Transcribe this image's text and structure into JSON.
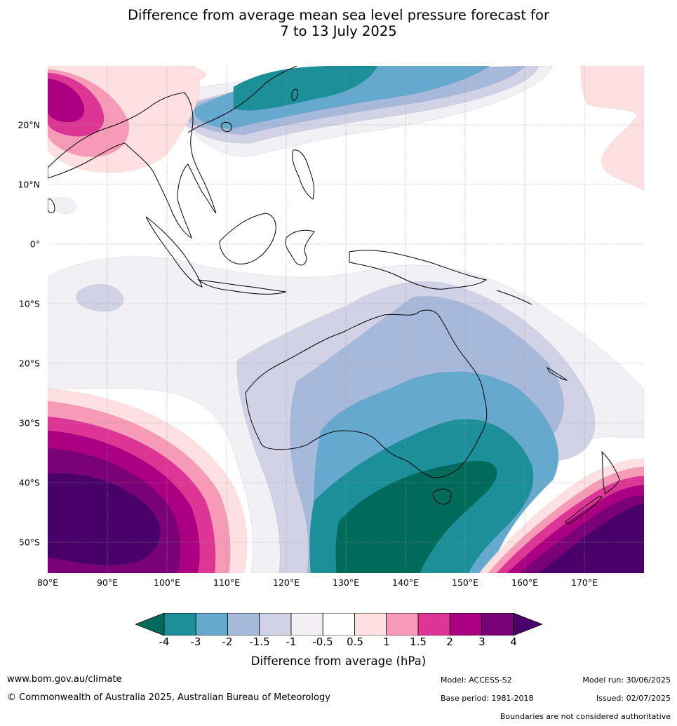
{
  "title_line1": "Difference from average mean sea level pressure forecast for",
  "title_line2": "7 to 13 July 2025",
  "map": {
    "lat_labels": [
      {
        "lat": 20,
        "text": "20°N"
      },
      {
        "lat": 10,
        "text": "10°N"
      },
      {
        "lat": 0,
        "text": "0°"
      },
      {
        "lat": -10,
        "text": "10°S"
      },
      {
        "lat": -20,
        "text": "20°S"
      },
      {
        "lat": -30,
        "text": "30°S"
      },
      {
        "lat": -40,
        "text": "40°S"
      },
      {
        "lat": -50,
        "text": "50°S"
      }
    ],
    "lon_labels": [
      {
        "lon": 80,
        "text": "80°E"
      },
      {
        "lon": 90,
        "text": "90°E"
      },
      {
        "lon": 100,
        "text": "100°E"
      },
      {
        "lon": 110,
        "text": "110°E"
      },
      {
        "lon": 120,
        "text": "120°E"
      },
      {
        "lon": 130,
        "text": "130°E"
      },
      {
        "lon": 140,
        "text": "140°E"
      },
      {
        "lon": 150,
        "text": "150°E"
      },
      {
        "lon": 160,
        "text": "160°E"
      },
      {
        "lon": 170,
        "text": "170°E"
      }
    ]
  },
  "colorbar": {
    "ticks": [
      "-4",
      "-3",
      "-2",
      "-1.5",
      "-1",
      "-0.5",
      "0.5",
      "1",
      "1.5",
      "2",
      "3",
      "4"
    ],
    "colors": [
      "#006b5b",
      "#1b9099",
      "#65a9cf",
      "#a7b9da",
      "#d2d2e6",
      "#f2eff5",
      "#ffffff",
      "#fee0e1",
      "#f79ab8",
      "#dc3596",
      "#ac0083",
      "#7a0178",
      "#4a006a"
    ],
    "label": "Difference from average (hPa)"
  },
  "footer": {
    "website": "www.bom.gov.au/climate",
    "copyright": "© Commonwealth of Australia 2025, Australian Bureau of Meteorology",
    "model": "Model: ACCESS-S2",
    "base_period": "Base period: 1981-2018",
    "model_run": "Model run: 30/06/2025",
    "issued": "Issued: 02/07/2025",
    "disclaimer": "Boundaries are not considered authoritative"
  }
}
